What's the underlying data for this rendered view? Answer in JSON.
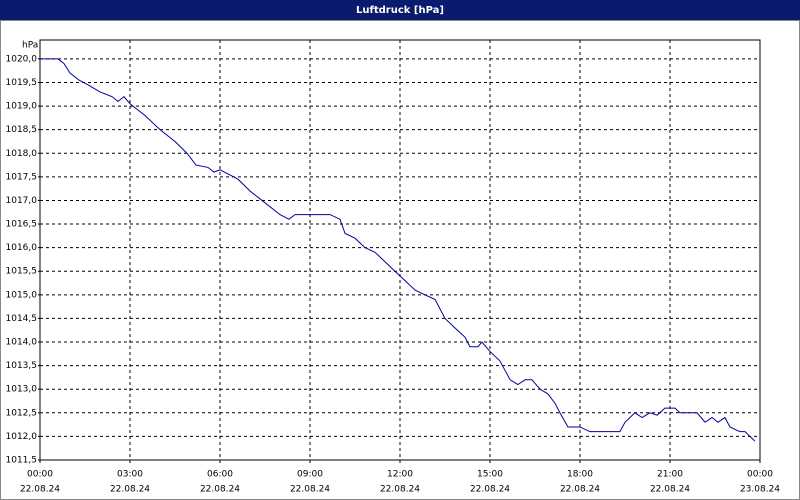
{
  "chart_data": {
    "type": "line",
    "title": "Luftdruck [hPa]",
    "y_unit": "hPa",
    "color": "#0000a0",
    "grid": true,
    "x": [
      0,
      0.6,
      0.8,
      1.0,
      1.3,
      1.6,
      2.0,
      2.4,
      2.6,
      2.8,
      3.0,
      3.5,
      4.0,
      4.5,
      4.9,
      5.2,
      5.6,
      5.8,
      6.0,
      6.3,
      6.6,
      7.0,
      7.5,
      8.0,
      8.3,
      8.5,
      9.0,
      9.67,
      10.0,
      10.17,
      10.5,
      10.83,
      11.17,
      11.5,
      11.83,
      12.17,
      12.5,
      12.83,
      13.17,
      13.5,
      13.83,
      14.17,
      14.33,
      14.6,
      14.73,
      15.0,
      15.33,
      15.67,
      15.93,
      16.17,
      16.4,
      16.67,
      16.93,
      17.17,
      17.33,
      17.6,
      18.0,
      18.33,
      19.33,
      19.5,
      19.83,
      20.07,
      20.33,
      20.57,
      20.83,
      21.17,
      21.33,
      21.9,
      22.17,
      22.4,
      22.6,
      22.83,
      23.0,
      23.33,
      23.5,
      23.83
    ],
    "values": [
      1020.0,
      1020.0,
      1019.9,
      1019.7,
      1019.55,
      1019.45,
      1019.3,
      1019.2,
      1019.1,
      1019.2,
      1019.05,
      1018.8,
      1018.5,
      1018.25,
      1018.0,
      1017.75,
      1017.7,
      1017.6,
      1017.65,
      1017.55,
      1017.45,
      1017.2,
      1016.95,
      1016.7,
      1016.6,
      1016.7,
      1016.7,
      1016.7,
      1016.6,
      1016.3,
      1016.2,
      1016.0,
      1015.9,
      1015.7,
      1015.5,
      1015.3,
      1015.1,
      1015.0,
      1014.9,
      1014.5,
      1014.3,
      1014.1,
      1013.9,
      1013.9,
      1014.0,
      1013.8,
      1013.6,
      1013.2,
      1013.1,
      1013.2,
      1013.2,
      1013.0,
      1012.9,
      1012.7,
      1012.5,
      1012.2,
      1012.2,
      1012.1,
      1012.1,
      1012.3,
      1012.5,
      1012.4,
      1012.5,
      1012.45,
      1012.6,
      1012.6,
      1012.5,
      1012.5,
      1012.3,
      1012.4,
      1012.3,
      1012.4,
      1012.2,
      1012.1,
      1012.1,
      1011.9
    ],
    "xlim": [
      0,
      24
    ],
    "xticks": [
      {
        "value": 0,
        "label": "00:00",
        "date": "22.08.24"
      },
      {
        "value": 3,
        "label": "03:00",
        "date": "22.08.24"
      },
      {
        "value": 6,
        "label": "06:00",
        "date": "22.08.24"
      },
      {
        "value": 9,
        "label": "09:00",
        "date": "22.08.24"
      },
      {
        "value": 12,
        "label": "12:00",
        "date": "22.08.24"
      },
      {
        "value": 15,
        "label": "15:00",
        "date": "22.08.24"
      },
      {
        "value": 18,
        "label": "18:00",
        "date": "22.08.24"
      },
      {
        "value": 21,
        "label": "21:00",
        "date": "22.08.24"
      },
      {
        "value": 24,
        "label": "00:00",
        "date": "23.08.24"
      }
    ],
    "ylim": [
      1011.5,
      1020.4
    ],
    "yticks": [
      {
        "value": 1011.5,
        "label": "1011,5"
      },
      {
        "value": 1012.0,
        "label": "1012,0"
      },
      {
        "value": 1012.5,
        "label": "1012,5"
      },
      {
        "value": 1013.0,
        "label": "1013,0"
      },
      {
        "value": 1013.5,
        "label": "1013,5"
      },
      {
        "value": 1014.0,
        "label": "1014,0"
      },
      {
        "value": 1014.5,
        "label": "1014,5"
      },
      {
        "value": 1015.0,
        "label": "1015,0"
      },
      {
        "value": 1015.5,
        "label": "1015,5"
      },
      {
        "value": 1016.0,
        "label": "1016,0"
      },
      {
        "value": 1016.5,
        "label": "1016,5"
      },
      {
        "value": 1017.0,
        "label": "1017,0"
      },
      {
        "value": 1017.5,
        "label": "1017,5"
      },
      {
        "value": 1018.0,
        "label": "1018,0"
      },
      {
        "value": 1018.5,
        "label": "1018,5"
      },
      {
        "value": 1019.0,
        "label": "1019,0"
      },
      {
        "value": 1019.5,
        "label": "1019,5"
      },
      {
        "value": 1020.0,
        "label": "1020,0"
      }
    ]
  }
}
